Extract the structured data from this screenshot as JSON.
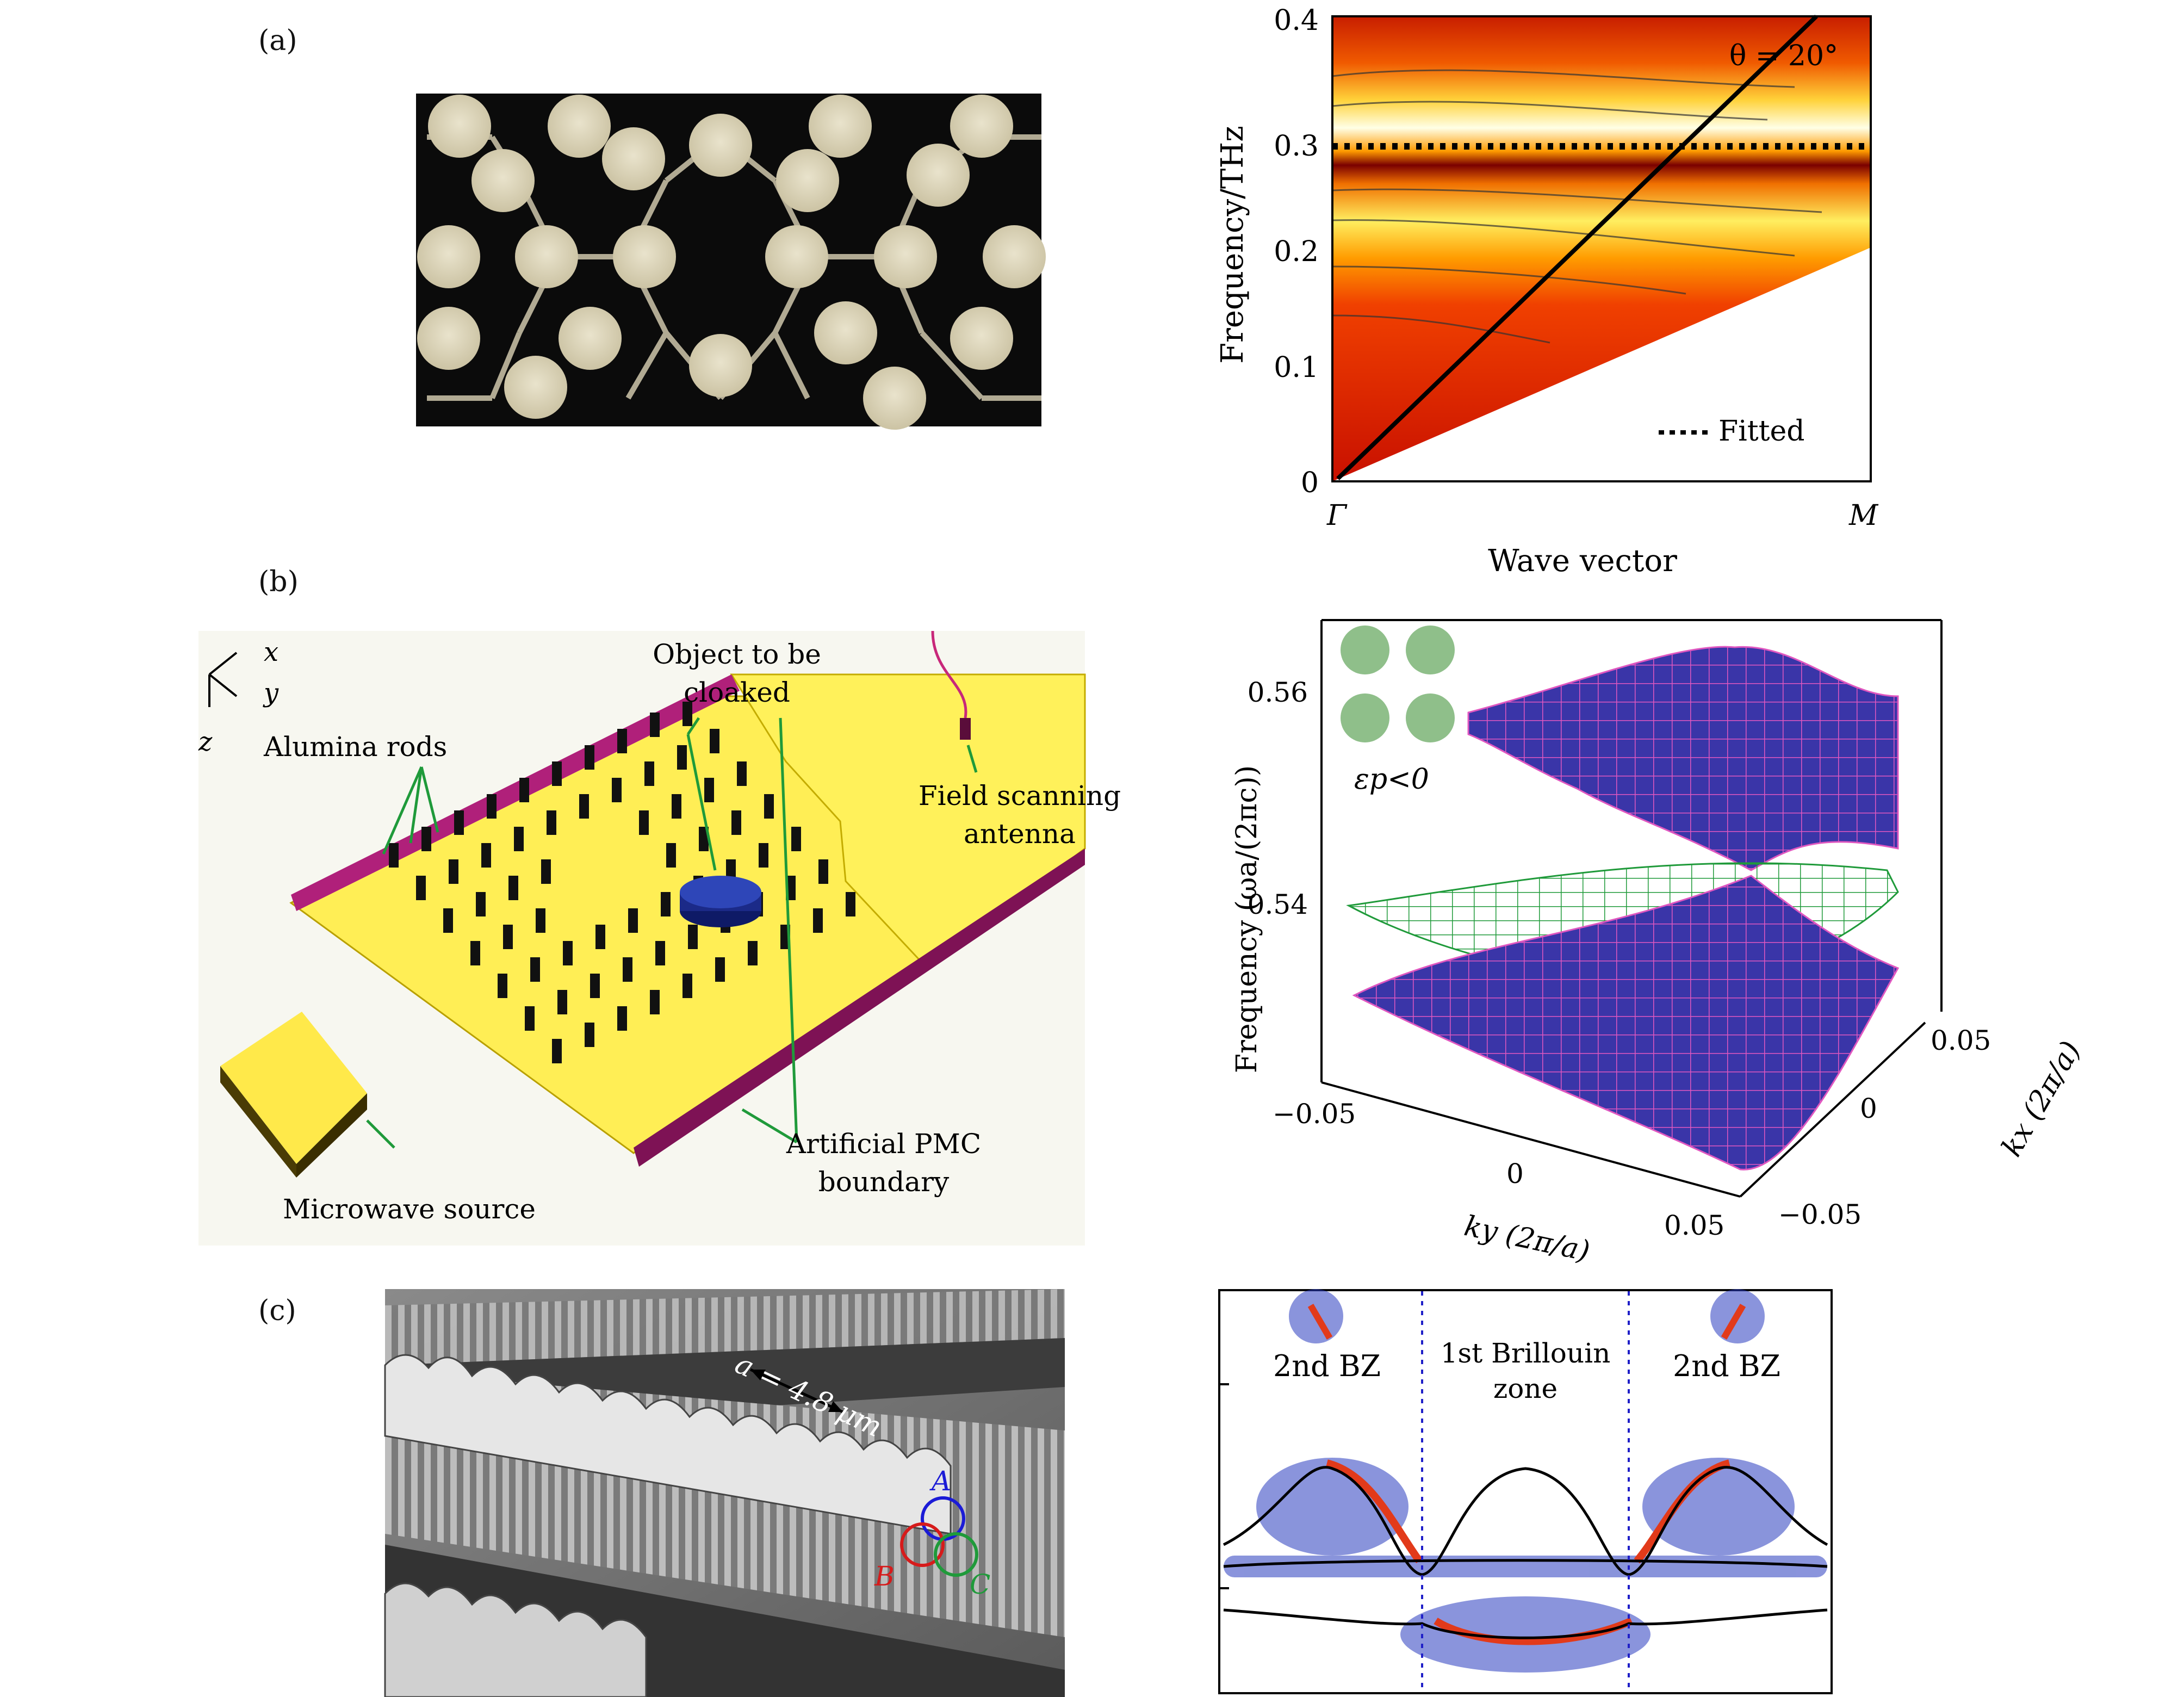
{
  "panel_labels": {
    "a": "(a)",
    "b": "(b)",
    "c": "(c)"
  },
  "panel_a": {
    "right_plot": {
      "ylabel": "Frequency/THz",
      "xlabel": "Wave vector",
      "yticks": [
        "0",
        "0.1",
        "0.2",
        "0.3",
        "0.4"
      ],
      "xticks": [
        "Γ",
        "M"
      ],
      "angle": "θ = 20°",
      "legend": "Fitted"
    }
  },
  "panel_b": {
    "axes_labels": {
      "x": "x",
      "y": "y",
      "z": "z"
    },
    "labels": {
      "object": "Object to be",
      "object2": "cloaked",
      "rods": "Alumina rods",
      "antenna": "Field scanning",
      "antenna2": "antenna",
      "pmc": "Artificial PMC",
      "pmc2": "boundary",
      "source": "Microwave source"
    },
    "plot": {
      "zlabel": "Frequency  (ωa/(2πc))",
      "zticks": [
        "0.56",
        "0.54"
      ],
      "ylabel": "ky (2π/a)",
      "xlabel": "kx (2π/a)",
      "yticks": [
        "−0.05",
        "0",
        "0.05"
      ],
      "xticks": [
        "0.05",
        "0",
        "−0.05"
      ],
      "eps": "εp<0"
    }
  },
  "panel_c": {
    "sem": {
      "lattice": "a = 4.8 μm",
      "A": "A",
      "B": "B",
      "C": "C"
    },
    "plot": {
      "left": "2nd BZ",
      "center1": "1st Brillouin",
      "center2": "zone",
      "right": "2nd BZ"
    }
  }
}
